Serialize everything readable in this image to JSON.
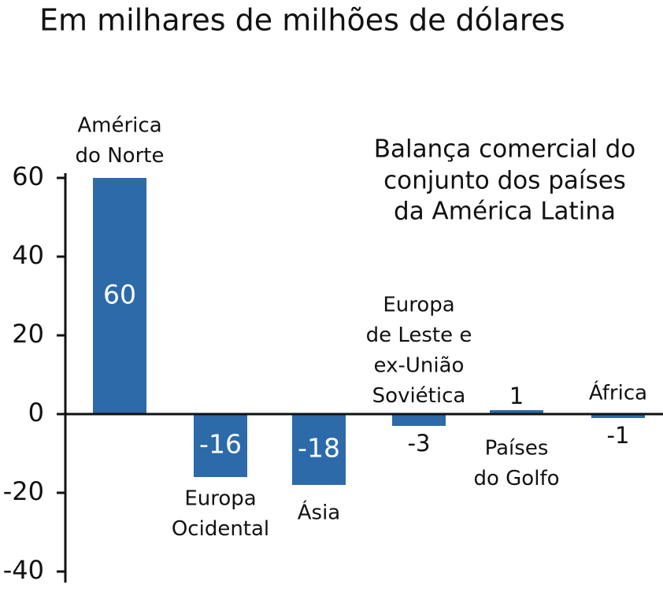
{
  "chart_data": {
    "type": "bar",
    "title": "Em milhares de milhões de dólares",
    "annotation": [
      "Balança comercial do",
      "conjunto dos países",
      "da América Latina"
    ],
    "categories": [
      [
        "América",
        "do Norte"
      ],
      [
        "Europa",
        "Ocidental"
      ],
      [
        "Ásia"
      ],
      [
        "Europa",
        "de Leste e",
        "ex-União",
        "Soviética"
      ],
      [
        "Países",
        "do Golfo"
      ],
      [
        "África"
      ]
    ],
    "values": [
      60,
      -16,
      -18,
      -3,
      1,
      -1
    ],
    "color": "#2d6aa9",
    "ylim": [
      -40,
      60
    ],
    "yticks": [
      -40,
      -20,
      0,
      20,
      40,
      60
    ],
    "grid": false
  }
}
